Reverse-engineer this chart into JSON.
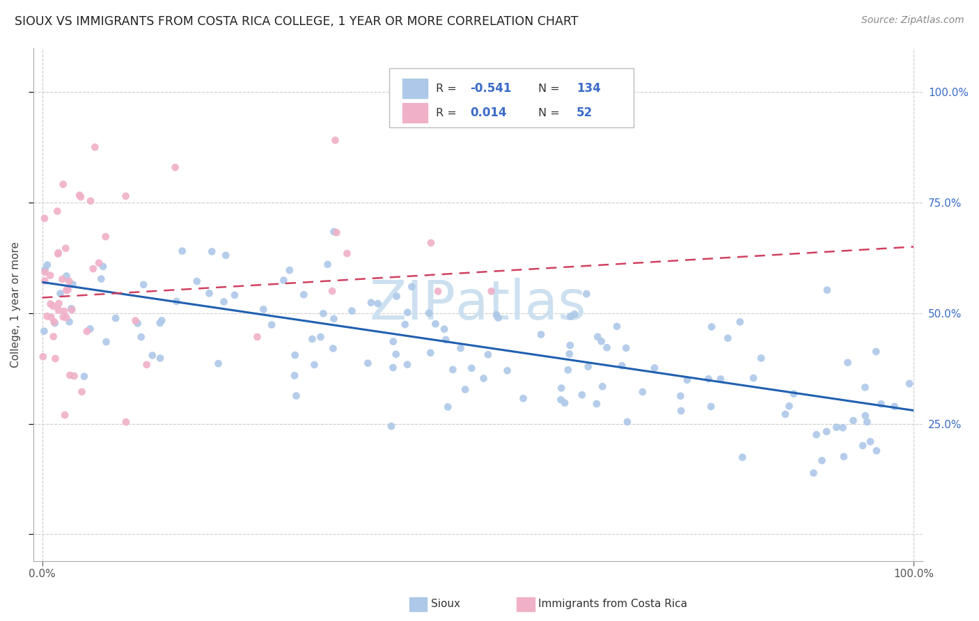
{
  "title": "SIOUX VS IMMIGRANTS FROM COSTA RICA COLLEGE, 1 YEAR OR MORE CORRELATION CHART",
  "source_text": "Source: ZipAtlas.com",
  "ylabel": "College, 1 year or more",
  "legend_R1": "-0.541",
  "legend_N1": "134",
  "legend_R2": "0.014",
  "legend_N2": "52",
  "sioux_color": "#adc8e8",
  "sioux_line_color": "#2060b0",
  "cr_color": "#f0b0c8",
  "cr_line_color": "#d04060",
  "label1": "Sioux",
  "label2": "Immigrants from Costa Rica",
  "text_color_blue": "#3a6bc8",
  "watermark_color": "#cce0f0",
  "sioux_seed": 12,
  "cr_seed": 7
}
